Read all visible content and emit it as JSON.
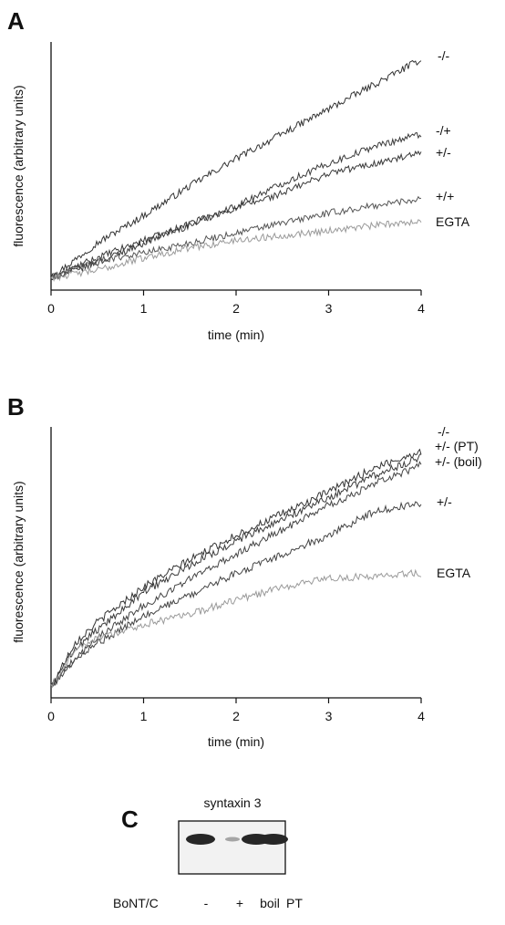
{
  "chart_data": [
    {
      "panel": "A",
      "type": "line",
      "xlabel": "time (min)",
      "ylabel": "fluorescence (arbitrary units)",
      "xlim": [
        0,
        4
      ],
      "ylim": [
        0,
        1
      ],
      "xticks": [
        "0",
        "1",
        "2",
        "3",
        "4"
      ],
      "series": [
        {
          "name": "-/-",
          "color": "#333333",
          "x": [
            0,
            0.5,
            1,
            1.5,
            2,
            2.5,
            3,
            3.5,
            4
          ],
          "values": [
            0.05,
            0.19,
            0.3,
            0.42,
            0.53,
            0.63,
            0.73,
            0.83,
            0.93
          ]
        },
        {
          "name": "-/+",
          "color": "#3a3a3a",
          "x": [
            0,
            0.5,
            1,
            1.5,
            2,
            2.5,
            3,
            3.5,
            4
          ],
          "values": [
            0.05,
            0.13,
            0.2,
            0.26,
            0.34,
            0.43,
            0.51,
            0.58,
            0.63
          ]
        },
        {
          "name": "+/-",
          "color": "#3a3a3a",
          "x": [
            0,
            0.5,
            1,
            1.5,
            2,
            2.5,
            3,
            3.5,
            4
          ],
          "values": [
            0.05,
            0.11,
            0.19,
            0.27,
            0.33,
            0.39,
            0.47,
            0.51,
            0.55
          ]
        },
        {
          "name": "+/+",
          "color": "#555555",
          "x": [
            0,
            0.5,
            1,
            1.5,
            2,
            2.5,
            3,
            3.5,
            4
          ],
          "values": [
            0.05,
            0.12,
            0.15,
            0.19,
            0.23,
            0.27,
            0.31,
            0.34,
            0.37
          ]
        },
        {
          "name": "EGTA",
          "color": "#9a9a9a",
          "x": [
            0,
            0.5,
            1,
            1.5,
            2,
            2.5,
            3,
            3.5,
            4
          ],
          "values": [
            0.05,
            0.08,
            0.13,
            0.17,
            0.2,
            0.22,
            0.24,
            0.26,
            0.28
          ]
        }
      ]
    },
    {
      "panel": "B",
      "type": "line",
      "xlabel": "time (min)",
      "ylabel": "fluorescence (arbitrary units)",
      "xlim": [
        0,
        4
      ],
      "ylim": [
        0,
        1
      ],
      "xticks": [
        "0",
        "1",
        "2",
        "3",
        "4"
      ],
      "series": [
        {
          "name": "-/-",
          "color": "#333333",
          "x": [
            0,
            0.25,
            0.5,
            1,
            1.5,
            2,
            2.5,
            3,
            3.5,
            4
          ],
          "values": [
            0.04,
            0.2,
            0.28,
            0.41,
            0.51,
            0.6,
            0.68,
            0.76,
            0.85,
            0.91
          ]
        },
        {
          "name": "+/- (PT)",
          "color": "#3a3a3a",
          "x": [
            0,
            0.25,
            0.5,
            1,
            1.5,
            2,
            2.5,
            3,
            3.5,
            4
          ],
          "values": [
            0.04,
            0.18,
            0.25,
            0.39,
            0.49,
            0.58,
            0.66,
            0.74,
            0.82,
            0.89
          ]
        },
        {
          "name": "+/- (boil)",
          "color": "#444444",
          "x": [
            0,
            0.25,
            0.5,
            1,
            1.5,
            2,
            2.5,
            3,
            3.5,
            4
          ],
          "values": [
            0.04,
            0.14,
            0.22,
            0.34,
            0.44,
            0.53,
            0.62,
            0.71,
            0.79,
            0.86
          ]
        },
        {
          "name": "+/-",
          "color": "#444444",
          "x": [
            0,
            0.25,
            0.5,
            1,
            1.5,
            2,
            2.5,
            3,
            3.5,
            4
          ],
          "values": [
            0.04,
            0.14,
            0.2,
            0.3,
            0.38,
            0.46,
            0.53,
            0.6,
            0.69,
            0.72
          ]
        },
        {
          "name": "EGTA",
          "color": "#9a9a9a",
          "x": [
            0,
            0.25,
            0.5,
            1,
            1.5,
            2,
            2.5,
            3,
            3.5,
            4
          ],
          "values": [
            0.04,
            0.17,
            0.22,
            0.27,
            0.31,
            0.36,
            0.41,
            0.44,
            0.45,
            0.46
          ]
        }
      ]
    }
  ],
  "blot": {
    "panel": "C",
    "title": "syntaxin 3",
    "row_label": "BoNT/C",
    "lanes": [
      {
        "label": "-",
        "intensity": 0.95
      },
      {
        "label": "+",
        "intensity": 0.25
      },
      {
        "label": "boil",
        "intensity": 0.95
      },
      {
        "label": "PT",
        "intensity": 0.95
      }
    ]
  }
}
